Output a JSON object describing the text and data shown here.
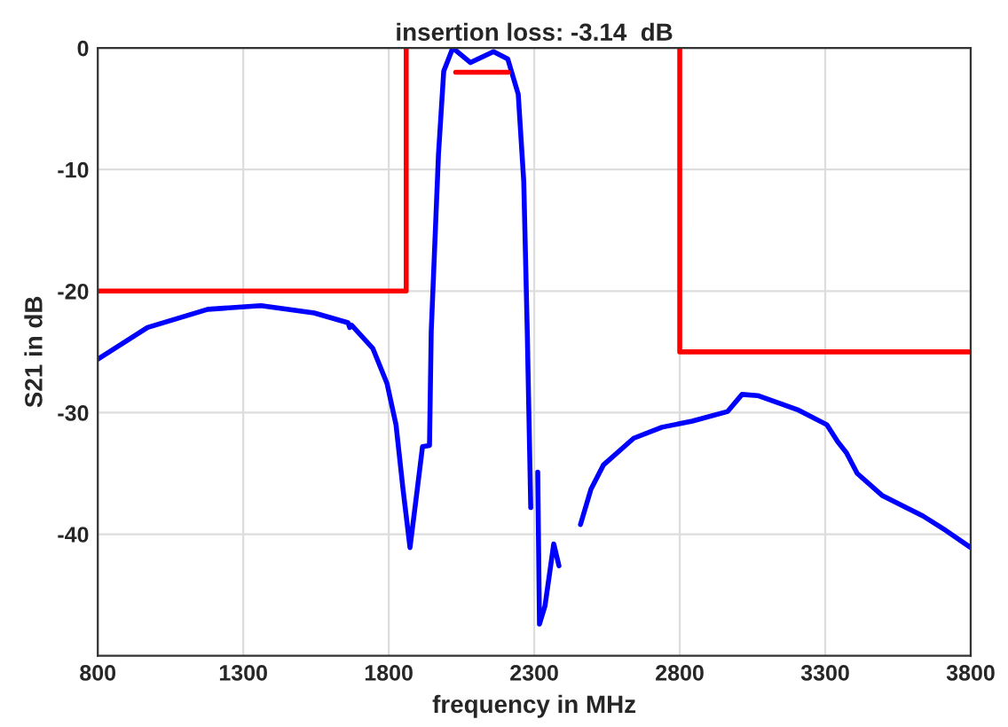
{
  "chart_data": {
    "type": "line",
    "title": "insertion loss: -3.14  dB",
    "xlabel": "frequency in MHz",
    "ylabel": "S21 in dB",
    "xlim": [
      800,
      3800
    ],
    "xticks": [
      800,
      1300,
      1800,
      2300,
      2800,
      3300,
      3800
    ],
    "ylim": [
      -50,
      0
    ],
    "yticks": [
      -40,
      -30,
      -20,
      -10,
      0
    ],
    "grid": true,
    "legend": false,
    "marker": "none",
    "line_style": "solid",
    "series": [
      {
        "color": "#0000ff",
        "x": [
          800,
          971,
          1178,
          1361,
          1544,
          1660,
          1666,
          1672,
          1745,
          1794,
          1825,
          1849,
          1873,
          1898,
          1916,
          1940,
          1946,
          1971,
          1989,
          2020,
          2081,
          2160,
          2209,
          2245,
          2264,
          2276,
          2288,
          2300,
          2312,
          2318,
          2337,
          2367,
          2385,
          2416,
          2434,
          2459,
          2495,
          2538,
          2642,
          2739,
          2843,
          2965,
          3014,
          3068,
          3209,
          3306,
          3343,
          3373,
          3410,
          3495,
          3636,
          3715,
          3800
        ],
        "values": [
          -25.6,
          -23.0,
          -21.5,
          -21.2,
          -21.8,
          -22.6,
          -23.0,
          -22.8,
          -24.7,
          -27.6,
          -31.0,
          -36.3,
          -41.1,
          -36.3,
          -32.8,
          -32.7,
          -23.3,
          -8.7,
          -1.9,
          0,
          -1.2,
          -0.3,
          -0.9,
          -3.8,
          -11.0,
          -23.3,
          -37.8,
          null,
          -34.9,
          -47.4,
          -45.9,
          -40.8,
          -42.6,
          null,
          null,
          -39.2,
          -36.3,
          -34.3,
          -32.1,
          -31.2,
          -30.7,
          -29.9,
          -28.5,
          -28.6,
          -29.8,
          -31.0,
          -32.4,
          -33.3,
          -35.0,
          -36.8,
          -38.5,
          -39.7,
          -41.1
        ]
      },
      {
        "color": "#ff0000",
        "x": [
          800,
          1860,
          1860
        ],
        "values": [
          -20,
          -20,
          0
        ]
      },
      {
        "color": "#ff0000",
        "x": [
          2800,
          2800,
          3800
        ],
        "values": [
          0,
          -25,
          -25
        ]
      },
      {
        "color": "#ff0000",
        "x": [
          2030,
          2210
        ],
        "values": [
          -2,
          -2
        ]
      }
    ]
  }
}
